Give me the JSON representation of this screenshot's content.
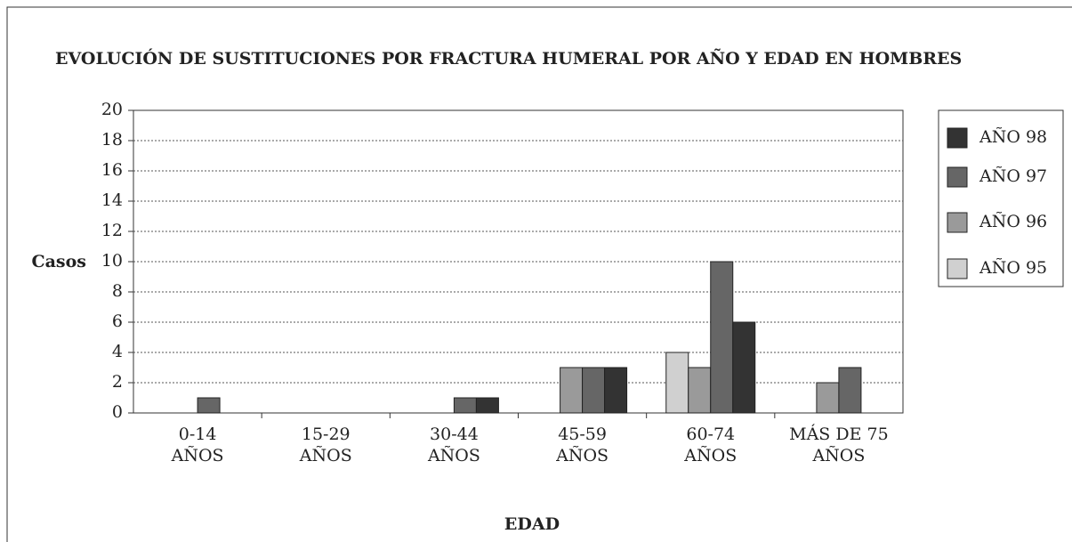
{
  "chart_data": {
    "type": "bar",
    "title": "EVOLUCIÓN DE SUSTITUCIONES POR FRACTURA HUMERAL POR AÑO Y EDAD EN HOMBRES",
    "ylabel": "Casos",
    "xlabel": "EDAD",
    "categories": [
      "0-14\nAÑOS",
      "15-29\nAÑOS",
      "30-44\nAÑOS",
      "45-59\nAÑOS",
      "60-74\nAÑOS",
      "MÁS DE 75\nAÑOS"
    ],
    "series": [
      {
        "name": "AÑO 95",
        "color": "#d0d0d0",
        "values": [
          0,
          0,
          0,
          0,
          4,
          0
        ]
      },
      {
        "name": "AÑO 96",
        "color": "#9a9a9a",
        "values": [
          0,
          0,
          0,
          3,
          3,
          2
        ]
      },
      {
        "name": "AÑO 97",
        "color": "#666666",
        "values": [
          1,
          0,
          1,
          3,
          10,
          3
        ]
      },
      {
        "name": "AÑO 98",
        "color": "#333333",
        "values": [
          0,
          0,
          1,
          3,
          6,
          0
        ]
      }
    ],
    "ylim": [
      0,
      20
    ],
    "yticks": [
      0,
      2,
      4,
      6,
      8,
      10,
      12,
      14,
      16,
      18,
      20
    ],
    "grid": true,
    "legend": "right"
  }
}
